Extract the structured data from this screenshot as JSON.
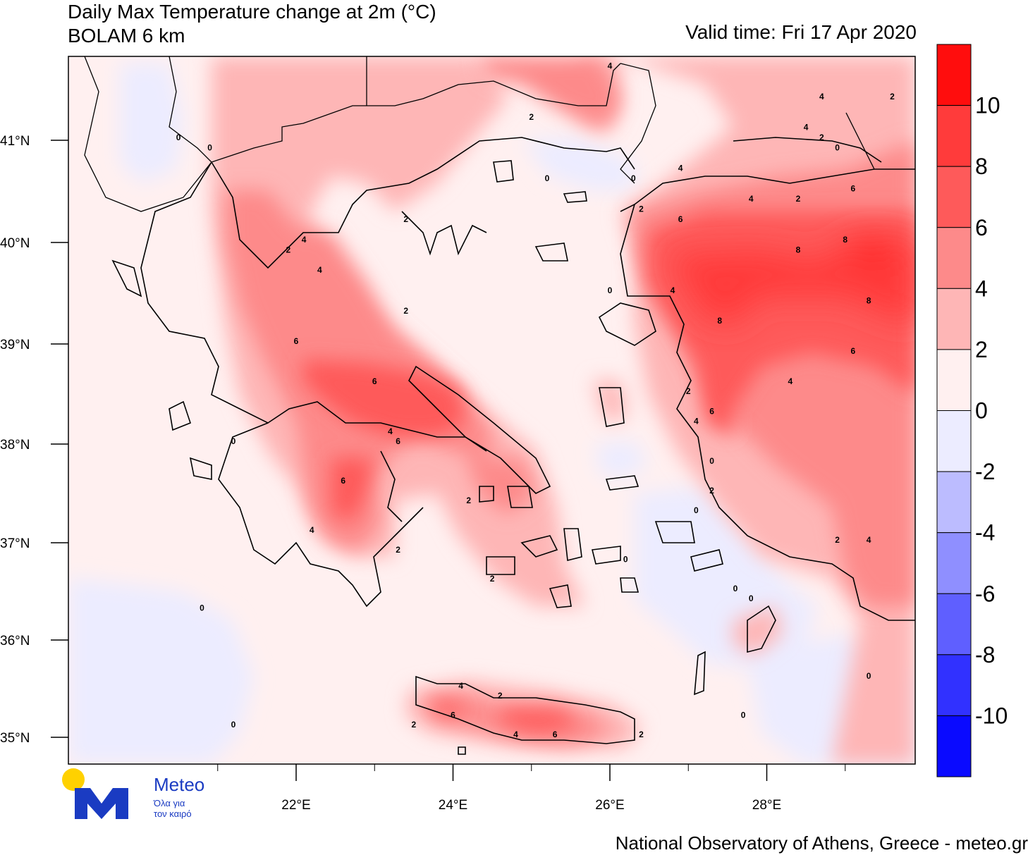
{
  "title": "Daily Max Temperature change at 2m (°C)",
  "subtitle": "BOLAM 6 km",
  "valid_time": "Valid time: Fri 17 Apr 2020",
  "footer": "National Observatory of Athens, Greece - meteo.gr",
  "logo": {
    "name": "Meteo",
    "tagline_line1": "Όλα για",
    "tagline_line2": "τον καιρό",
    "sun_color": "#ffd100",
    "brand_color": "#1a3bc2"
  },
  "lat_labels": [
    "41°N",
    "40°N",
    "39°N",
    "38°N",
    "37°N",
    "36°N",
    "35°N"
  ],
  "lon_labels": [
    "22°E",
    "24°E",
    "26°E",
    "28°E"
  ],
  "colorbar": {
    "labels": [
      "10",
      "8",
      "6",
      "4",
      "2",
      "0",
      "-2",
      "-4",
      "-6",
      "-8",
      "-10"
    ],
    "colors": [
      "#ff0d0d",
      "#ff3b3b",
      "#fe5a5a",
      "#fd8a8a",
      "#feb6b6",
      "#fff0f0",
      "#ececff",
      "#bcbcff",
      "#8f8fff",
      "#5f5fff",
      "#3131ff",
      "#0a0aff"
    ]
  },
  "contour_labels": [
    {
      "text": "0",
      "lon": 20.5,
      "lat": 41.0
    },
    {
      "text": "0",
      "lon": 20.9,
      "lat": 40.9
    },
    {
      "text": "4",
      "lon": 22.1,
      "lat": 40.0
    },
    {
      "text": "2",
      "lon": 21.9,
      "lat": 39.9
    },
    {
      "text": "4",
      "lon": 22.3,
      "lat": 39.7
    },
    {
      "text": "6",
      "lon": 22.0,
      "lat": 39.0
    },
    {
      "text": "6",
      "lon": 23.0,
      "lat": 38.6
    },
    {
      "text": "4",
      "lon": 23.2,
      "lat": 38.1
    },
    {
      "text": "6",
      "lon": 23.3,
      "lat": 38.0
    },
    {
      "text": "6",
      "lon": 22.6,
      "lat": 37.6
    },
    {
      "text": "4",
      "lon": 22.2,
      "lat": 37.1
    },
    {
      "text": "2",
      "lon": 23.3,
      "lat": 36.9
    },
    {
      "text": "0",
      "lon": 21.2,
      "lat": 38.0
    },
    {
      "text": "0",
      "lon": 20.8,
      "lat": 36.3
    },
    {
      "text": "0",
      "lon": 21.2,
      "lat": 35.1
    },
    {
      "text": "2",
      "lon": 23.4,
      "lat": 39.3
    },
    {
      "text": "2",
      "lon": 25.0,
      "lat": 41.2
    },
    {
      "text": "4",
      "lon": 26.0,
      "lat": 41.7
    },
    {
      "text": "0",
      "lon": 25.2,
      "lat": 40.6
    },
    {
      "text": "2",
      "lon": 23.4,
      "lat": 40.2
    },
    {
      "text": "0",
      "lon": 26.3,
      "lat": 40.6
    },
    {
      "text": "2",
      "lon": 26.4,
      "lat": 40.3
    },
    {
      "text": "6",
      "lon": 26.9,
      "lat": 40.2
    },
    {
      "text": "4",
      "lon": 26.9,
      "lat": 40.7
    },
    {
      "text": "4",
      "lon": 27.8,
      "lat": 40.4
    },
    {
      "text": "2",
      "lon": 28.4,
      "lat": 40.4
    },
    {
      "text": "6",
      "lon": 29.1,
      "lat": 40.5
    },
    {
      "text": "4",
      "lon": 28.7,
      "lat": 41.4
    },
    {
      "text": "2",
      "lon": 29.6,
      "lat": 41.4
    },
    {
      "text": "4",
      "lon": 28.5,
      "lat": 41.1
    },
    {
      "text": "2",
      "lon": 28.7,
      "lat": 41.0
    },
    {
      "text": "0",
      "lon": 28.9,
      "lat": 40.9
    },
    {
      "text": "8",
      "lon": 28.4,
      "lat": 39.9
    },
    {
      "text": "8",
      "lon": 29.0,
      "lat": 40.0
    },
    {
      "text": "8",
      "lon": 29.3,
      "lat": 39.4
    },
    {
      "text": "8",
      "lon": 27.4,
      "lat": 39.2
    },
    {
      "text": "6",
      "lon": 29.1,
      "lat": 38.9
    },
    {
      "text": "4",
      "lon": 28.3,
      "lat": 38.6
    },
    {
      "text": "2",
      "lon": 27.0,
      "lat": 38.5
    },
    {
      "text": "6",
      "lon": 27.3,
      "lat": 38.3
    },
    {
      "text": "4",
      "lon": 27.1,
      "lat": 38.2
    },
    {
      "text": "4",
      "lon": 26.8,
      "lat": 39.5
    },
    {
      "text": "0",
      "lon": 26.0,
      "lat": 39.5
    },
    {
      "text": "0",
      "lon": 27.3,
      "lat": 37.8
    },
    {
      "text": "2",
      "lon": 27.3,
      "lat": 37.5
    },
    {
      "text": "0",
      "lon": 27.1,
      "lat": 37.3
    },
    {
      "text": "2",
      "lon": 28.9,
      "lat": 37.0
    },
    {
      "text": "4",
      "lon": 29.3,
      "lat": 37.0
    },
    {
      "text": "0",
      "lon": 26.2,
      "lat": 36.8
    },
    {
      "text": "0",
      "lon": 27.6,
      "lat": 36.5
    },
    {
      "text": "0",
      "lon": 27.8,
      "lat": 36.4
    },
    {
      "text": "2",
      "lon": 24.5,
      "lat": 36.6
    },
    {
      "text": "2",
      "lon": 24.2,
      "lat": 37.4
    },
    {
      "text": "0",
      "lon": 29.3,
      "lat": 35.6
    },
    {
      "text": "0",
      "lon": 27.7,
      "lat": 35.2
    },
    {
      "text": "4",
      "lon": 24.1,
      "lat": 35.5
    },
    {
      "text": "2",
      "lon": 24.6,
      "lat": 35.4
    },
    {
      "text": "6",
      "lon": 24.0,
      "lat": 35.2
    },
    {
      "text": "2",
      "lon": 23.5,
      "lat": 35.1
    },
    {
      "text": "4",
      "lon": 24.8,
      "lat": 35.0
    },
    {
      "text": "6",
      "lon": 25.3,
      "lat": 35.0
    },
    {
      "text": "2",
      "lon": 26.4,
      "lat": 35.0
    }
  ],
  "warm_regions": [
    {
      "level": "2-4",
      "lon": [
        21.7,
        23.6
      ],
      "lat": [
        39.2,
        41.8
      ]
    },
    {
      "level": "4-6",
      "lon": [
        21.8,
        22.8
      ],
      "lat": [
        39.5,
        40.5
      ]
    },
    {
      "level": "4-6",
      "lon": [
        22.0,
        23.8
      ],
      "lat": [
        37.8,
        39.5
      ]
    },
    {
      "level": "6-8",
      "lon": [
        22.3,
        23.8
      ],
      "lat": [
        38.1,
        38.8
      ]
    },
    {
      "level": "6-8",
      "lon": [
        27.0,
        29.9
      ],
      "lat": [
        38.5,
        40.3
      ]
    },
    {
      "level": "8-10",
      "lon": [
        29.1,
        29.4
      ],
      "lat": [
        39.7,
        39.9
      ]
    }
  ]
}
